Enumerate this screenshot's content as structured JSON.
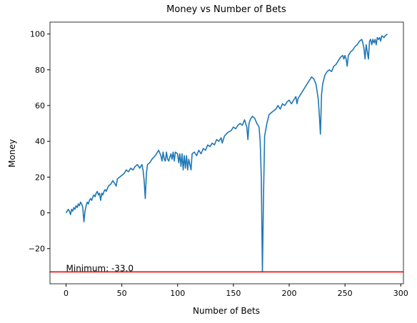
{
  "chart_data": {
    "type": "line",
    "title": "Money vs Number of Bets",
    "xlabel": "Number of Bets",
    "ylabel": "Money",
    "x": [
      0,
      1,
      2,
      3,
      4,
      5,
      6,
      7,
      8,
      9,
      10,
      11,
      12,
      13,
      14,
      15,
      16,
      17,
      18,
      19,
      20,
      21,
      22,
      23,
      24,
      25,
      26,
      27,
      28,
      29,
      30,
      31,
      32,
      33,
      34,
      35,
      36,
      38,
      40,
      42,
      44,
      45,
      46,
      48,
      50,
      52,
      54,
      56,
      58,
      60,
      62,
      64,
      66,
      68,
      69,
      70,
      71,
      72,
      73,
      75,
      77,
      80,
      83,
      85,
      86,
      87,
      88,
      89,
      90,
      91,
      92,
      94,
      95,
      96,
      97,
      98,
      100,
      101,
      102,
      103,
      104,
      105,
      106,
      107,
      108,
      109,
      110,
      111,
      112,
      113,
      115,
      117,
      119,
      121,
      123,
      125,
      127,
      129,
      131,
      133,
      135,
      137,
      139,
      140,
      142,
      145,
      148,
      150,
      152,
      154,
      156,
      158,
      160,
      161,
      162,
      163,
      164,
      165,
      167,
      169,
      171,
      173,
      174,
      175,
      176,
      177,
      178,
      180,
      182,
      184,
      186,
      188,
      190,
      192,
      194,
      196,
      198,
      200,
      202,
      204,
      206,
      207,
      208,
      210,
      212,
      214,
      216,
      218,
      220,
      222,
      224,
      226,
      227,
      228,
      229,
      230,
      232,
      234,
      236,
      238,
      240,
      242,
      244,
      246,
      248,
      249,
      250,
      251,
      252,
      253,
      255,
      257,
      259,
      261,
      263,
      265,
      266,
      267,
      268,
      269,
      270,
      271,
      272,
      273,
      274,
      275,
      276,
      277,
      278,
      279,
      280,
      281,
      282,
      283,
      285,
      286,
      288
    ],
    "series": [
      {
        "name": "Money",
        "color": "#1f77b4",
        "values": [
          0,
          1,
          2,
          1,
          -1,
          2,
          1,
          3,
          2,
          4,
          3,
          5,
          4,
          6,
          5,
          3,
          -5,
          1,
          4,
          6,
          5,
          7,
          8,
          7,
          9,
          10,
          9,
          11,
          12,
          10,
          11,
          7,
          11,
          10,
          12,
          13,
          12,
          15,
          16,
          18,
          16,
          15,
          19,
          20,
          21,
          22,
          24,
          23,
          25,
          24,
          26,
          27,
          25,
          27,
          24,
          18,
          8,
          22,
          27,
          28,
          30,
          32,
          35,
          32,
          29,
          34,
          30,
          29,
          34,
          30,
          29,
          33,
          30,
          34,
          29,
          34,
          33,
          28,
          33,
          26,
          33,
          24,
          32,
          25,
          32,
          24,
          30,
          27,
          24,
          33,
          34,
          32,
          35,
          33,
          36,
          35,
          38,
          37,
          39,
          38,
          41,
          40,
          42,
          39,
          43,
          45,
          46,
          48,
          47,
          49,
          50,
          49,
          52,
          50,
          48,
          41,
          50,
          52,
          54,
          53,
          50,
          48,
          40,
          20,
          -33,
          10,
          43,
          50,
          55,
          56,
          57,
          58,
          60,
          58,
          61,
          60,
          62,
          63,
          61,
          63,
          65,
          61,
          64,
          66,
          68,
          70,
          72,
          74,
          76,
          75,
          72,
          64,
          55,
          44,
          66,
          72,
          77,
          79,
          80,
          79,
          82,
          83,
          85,
          87,
          88,
          86,
          88,
          86,
          82,
          88,
          90,
          91,
          93,
          94,
          96,
          97,
          95,
          92,
          86,
          94,
          90,
          86,
          96,
          97,
          94,
          97,
          95,
          97,
          94,
          98,
          97,
          98,
          96,
          99,
          98,
          99,
          100
        ]
      }
    ],
    "hline": {
      "value": -33,
      "color": "#ff0000",
      "label": "Minimum: -33.0",
      "label_x": 0
    },
    "xlim": [
      -14.4,
      302.4
    ],
    "ylim": [
      -39.65,
      106.65
    ],
    "xticks": [
      0,
      50,
      100,
      150,
      200,
      250,
      300
    ],
    "yticks": [
      {
        "value": -20,
        "label": "−20"
      },
      0,
      20,
      40,
      60,
      80,
      100
    ]
  }
}
